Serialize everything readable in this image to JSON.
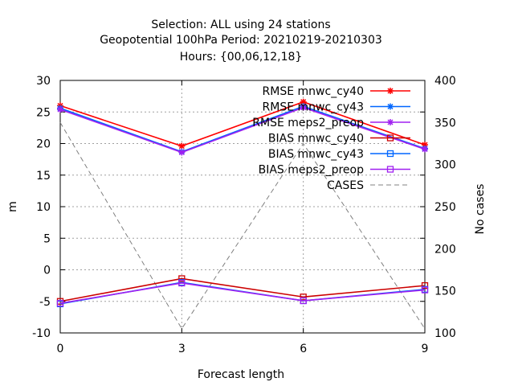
{
  "chart_data": {
    "type": "line",
    "title_lines": [
      "Selection: ALL using    24 stations",
      "Geopotential 100hPa   Period: 20210219-20210303",
      "Hours: {00,06,12,18}"
    ],
    "xlabel": "Forecast length",
    "ylabel": "m",
    "y2label": "No cases",
    "x": [
      0,
      3,
      6,
      9
    ],
    "xlim": [
      0,
      9
    ],
    "xticks": [
      0,
      3,
      6,
      9
    ],
    "ylim": [
      -10,
      30
    ],
    "yticks": [
      -10,
      -5,
      0,
      5,
      10,
      15,
      20,
      25,
      30
    ],
    "y2lim": [
      100,
      400
    ],
    "y2ticks": [
      100,
      150,
      200,
      250,
      300,
      350,
      400
    ],
    "grid": true,
    "legend_position": "top-right",
    "series": [
      {
        "name": "RMSE mnwc_cy40",
        "values": [
          26.0,
          19.6,
          26.6,
          19.8
        ],
        "color": "#ff0000",
        "marker": "star"
      },
      {
        "name": "RMSE mnwc_cy43",
        "values": [
          25.6,
          18.7,
          25.9,
          19.2
        ],
        "color": "#0066ff",
        "marker": "star"
      },
      {
        "name": "RMSE meps2_preop",
        "values": [
          25.4,
          18.6,
          25.7,
          19.1
        ],
        "color": "#a020f0",
        "marker": "star"
      },
      {
        "name": "BIAS mnwc_cy40",
        "values": [
          -5.0,
          -1.4,
          -4.3,
          -2.5
        ],
        "color": "#cc0000",
        "marker": "square"
      },
      {
        "name": "BIAS mnwc_cy43",
        "values": [
          -5.4,
          -2.0,
          -4.9,
          -3.1
        ],
        "color": "#0066ff",
        "marker": "square"
      },
      {
        "name": "BIAS meps2_preop",
        "values": [
          -5.3,
          -2.1,
          -4.9,
          -3.2
        ],
        "color": "#a020f0",
        "marker": "square"
      },
      {
        "name": "CASES",
        "values": [
          350,
          105,
          325,
          105
        ],
        "axis": "y2",
        "color": "#808080",
        "style": "dashed"
      }
    ]
  }
}
